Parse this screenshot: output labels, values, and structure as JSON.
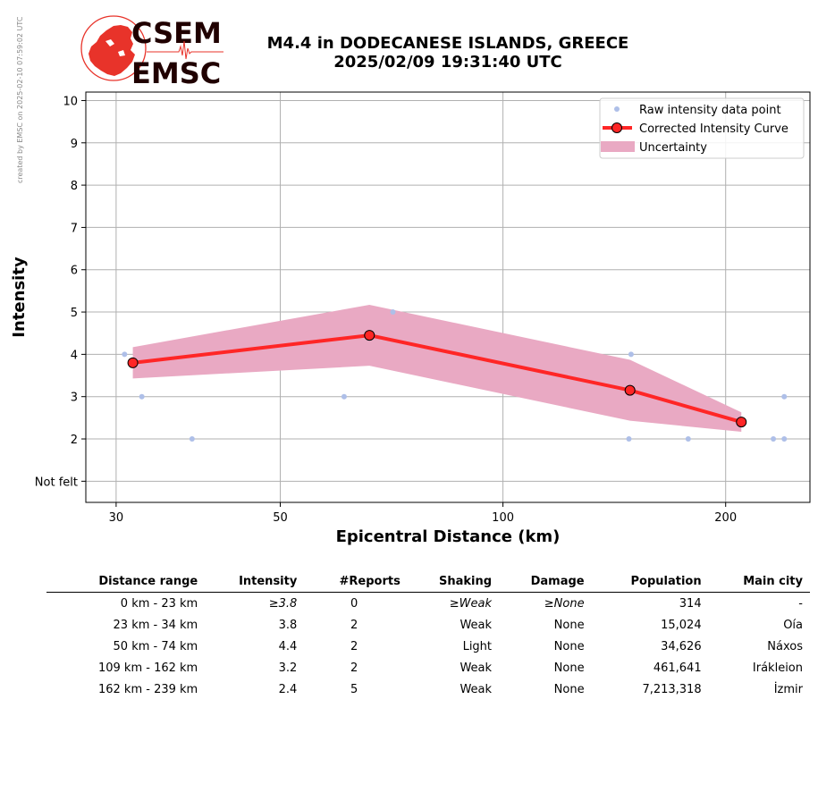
{
  "credit": "created by EMSC on 2025-02-10 07:59:02 UTC",
  "logo": {
    "line1": "CSEM",
    "line2": "EMSC"
  },
  "title": {
    "line1": "M4.4 in DODECANESE ISLANDS, GREECE",
    "line2": "2025/02/09 19:31:40 UTC"
  },
  "colors": {
    "raw": "#aebfe8",
    "curve": "#ff2626",
    "band": "#e9a9c3",
    "grid": "#b0b0b0",
    "logo_red": "#e8332a",
    "logo_text": "#200000"
  },
  "chart_data": {
    "type": "line",
    "xlabel": "Epicentral Distance (km)",
    "ylabel": "Intensity",
    "xscale": "log",
    "xlim": [
      27.3,
      260
    ],
    "ylim": [
      0.5,
      10.2
    ],
    "xticks": [
      30,
      50,
      100,
      200
    ],
    "yticks": [
      {
        "value": 1,
        "label": "Not felt"
      },
      {
        "value": 2,
        "label": "2"
      },
      {
        "value": 3,
        "label": "3"
      },
      {
        "value": 4,
        "label": "4"
      },
      {
        "value": 5,
        "label": "5"
      },
      {
        "value": 6,
        "label": "6"
      },
      {
        "value": 7,
        "label": "7"
      },
      {
        "value": 8,
        "label": "8"
      },
      {
        "value": 9,
        "label": "9"
      },
      {
        "value": 10,
        "label": "10"
      }
    ],
    "grid": true,
    "legend_position": "top-right",
    "legend": [
      "Raw intensity data point",
      "Corrected Intensity Curve",
      "Uncertainty"
    ],
    "raw_points": [
      {
        "x": 30.8,
        "y": 4
      },
      {
        "x": 32.5,
        "y": 3
      },
      {
        "x": 38.0,
        "y": 2
      },
      {
        "x": 61.0,
        "y": 3
      },
      {
        "x": 71.0,
        "y": 5
      },
      {
        "x": 149,
        "y": 4
      },
      {
        "x": 148,
        "y": 2
      },
      {
        "x": 178,
        "y": 2
      },
      {
        "x": 232,
        "y": 2
      },
      {
        "x": 240,
        "y": 3
      },
      {
        "x": 240,
        "y": 2
      }
    ],
    "curve": [
      {
        "x": 31.6,
        "y": 3.8
      },
      {
        "x": 66.0,
        "y": 4.45
      },
      {
        "x": 148.5,
        "y": 3.15
      },
      {
        "x": 210,
        "y": 2.4
      }
    ],
    "uncertainty": {
      "upper": [
        {
          "x": 31.6,
          "y": 4.17
        },
        {
          "x": 66.0,
          "y": 5.17
        },
        {
          "x": 148.5,
          "y": 3.87
        },
        {
          "x": 210,
          "y": 2.63
        }
      ],
      "lower": [
        {
          "x": 31.6,
          "y": 3.43
        },
        {
          "x": 66.0,
          "y": 3.73
        },
        {
          "x": 148.5,
          "y": 2.43
        },
        {
          "x": 210,
          "y": 2.17
        }
      ]
    }
  },
  "table": {
    "headers": [
      "Distance range",
      "Intensity",
      "#Reports",
      "Shaking",
      "Damage",
      "Population",
      "Main city"
    ],
    "rows": [
      [
        "0 km -   23 km",
        "≥3.8",
        "0",
        "≥Weak",
        "≥None",
        "314",
        "-"
      ],
      [
        "23 km -   34 km",
        "3.8",
        "2",
        "Weak",
        "None",
        "15,024",
        "Oía"
      ],
      [
        "50 km -   74 km",
        "4.4",
        "2",
        "Light",
        "None",
        "34,626",
        "Náxos"
      ],
      [
        "109 km -  162 km",
        "3.2",
        "2",
        "Weak",
        "None",
        "461,641",
        "Irákleion"
      ],
      [
        "162 km -  239 km",
        "2.4",
        "5",
        "Weak",
        "None",
        "7,213,318",
        "İzmir"
      ]
    ]
  }
}
